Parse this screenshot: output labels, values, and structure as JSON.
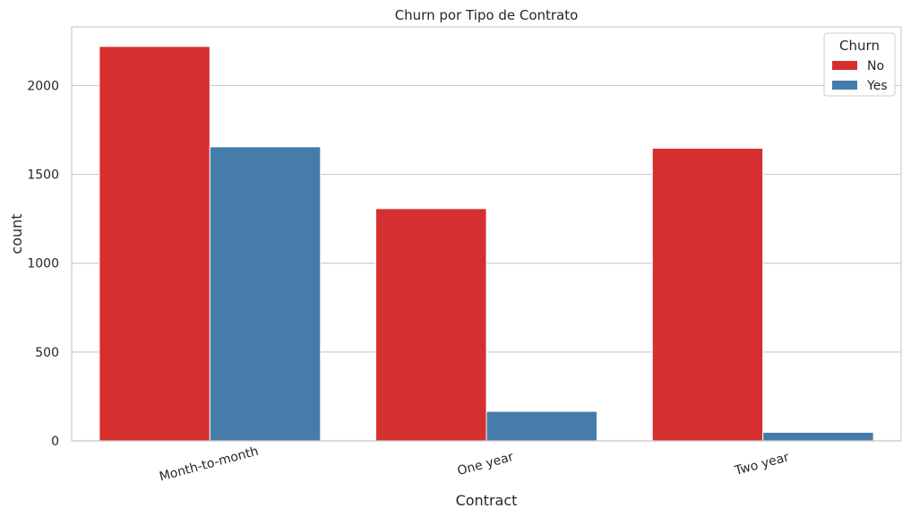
{
  "chart_data": {
    "type": "bar",
    "title": "Churn por Tipo de Contrato",
    "xlabel": "Contract",
    "ylabel": "count",
    "categories": [
      "Month-to-month",
      "One year",
      "Two year"
    ],
    "series": [
      {
        "name": "No",
        "values": [
          2220,
          1307,
          1647
        ],
        "color": "#d62f2f"
      },
      {
        "name": "Yes",
        "values": [
          1655,
          166,
          48
        ],
        "color": "#467ca9"
      }
    ],
    "ylim": [
      0,
      2330
    ],
    "yticks": [
      0,
      500,
      1000,
      1500,
      2000
    ],
    "grid": true,
    "legend": {
      "title": "Churn",
      "placement": "top-right"
    }
  }
}
